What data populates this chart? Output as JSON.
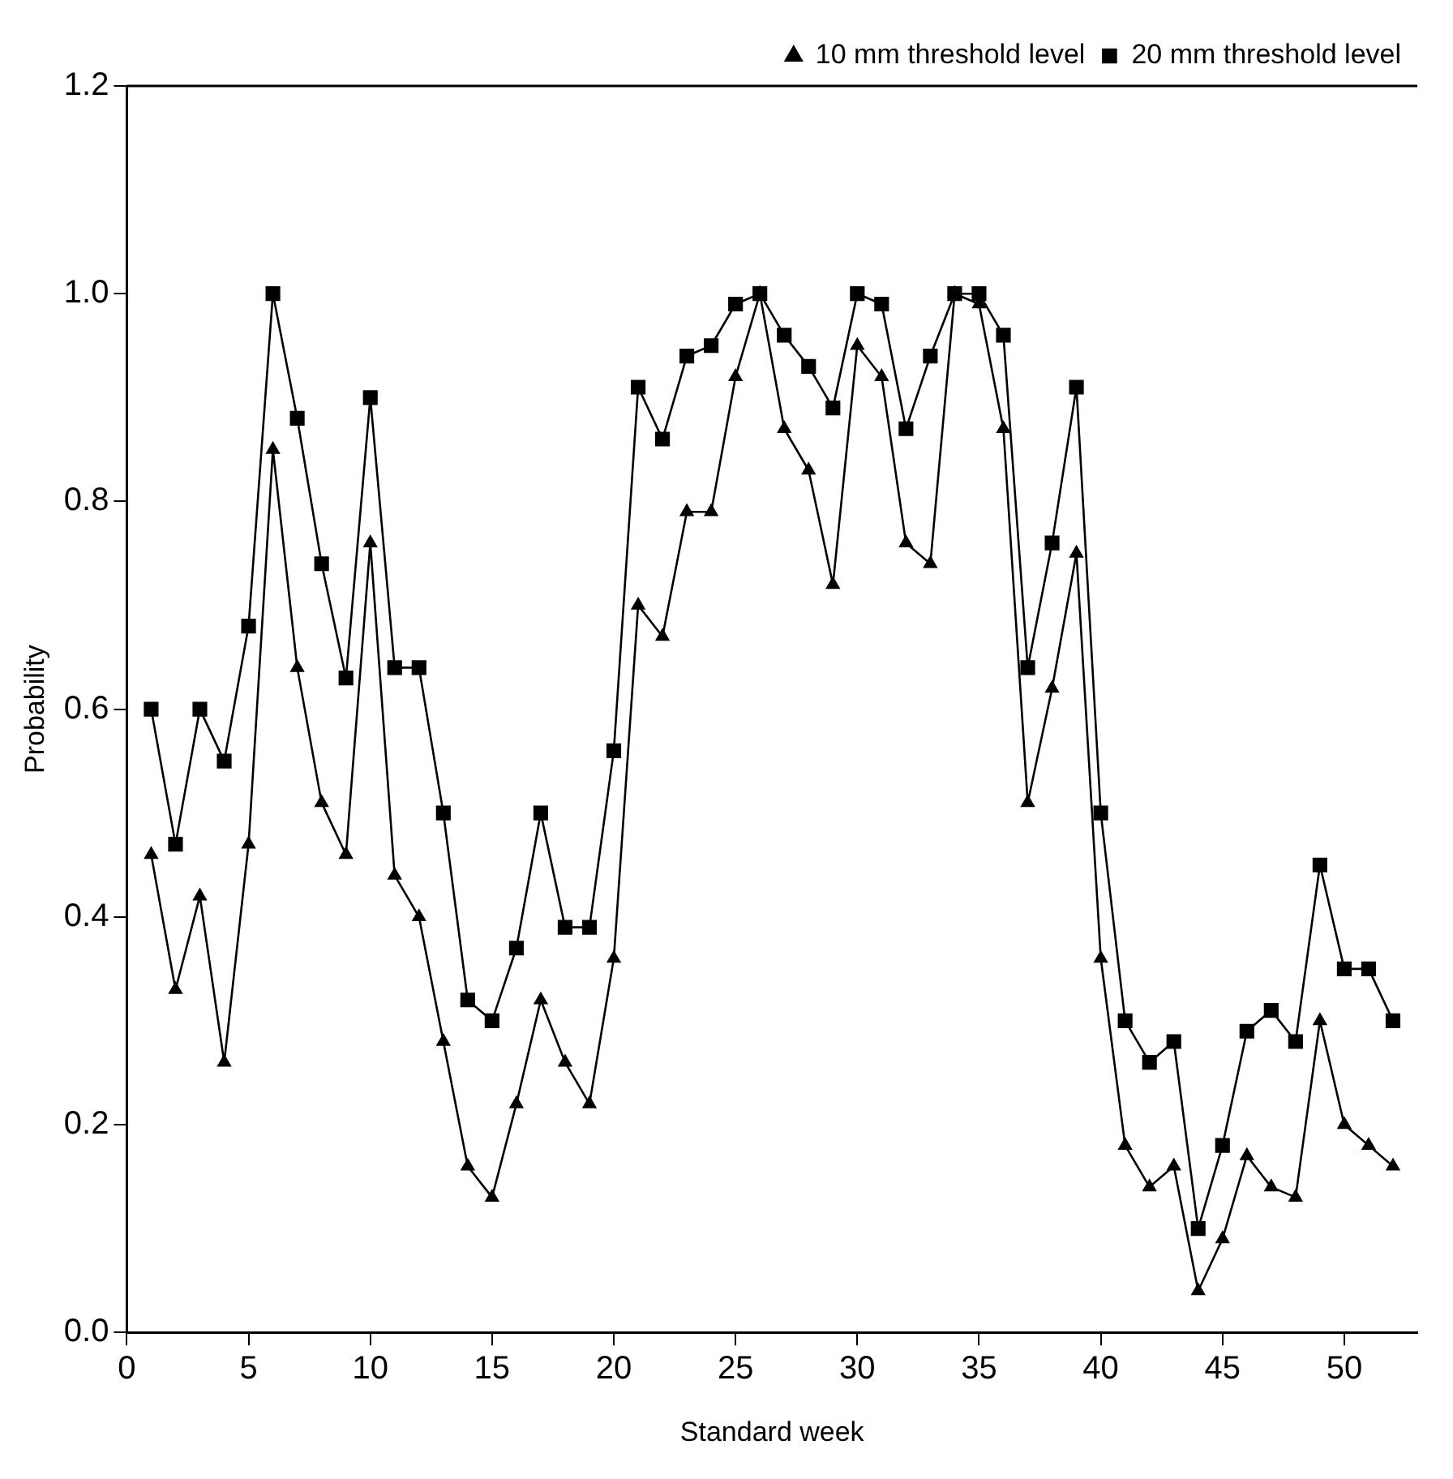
{
  "chart_data": {
    "type": "line",
    "xlabel": "Standard week",
    "ylabel": "Probability",
    "x": [
      1,
      2,
      3,
      4,
      5,
      6,
      7,
      8,
      9,
      10,
      11,
      12,
      13,
      14,
      15,
      16,
      17,
      18,
      19,
      20,
      21,
      22,
      23,
      24,
      25,
      26,
      27,
      28,
      29,
      30,
      31,
      32,
      33,
      34,
      35,
      36,
      37,
      38,
      39,
      40,
      41,
      42,
      43,
      44,
      45,
      46,
      47,
      48,
      49,
      50,
      51,
      52
    ],
    "series": [
      {
        "name": "20 mm threshold level",
        "color": "#000000",
        "marker": "square",
        "values": [
          0.6,
          0.47,
          0.6,
          0.55,
          0.68,
          1.0,
          0.88,
          0.74,
          0.63,
          0.9,
          0.64,
          0.64,
          0.5,
          0.32,
          0.3,
          0.37,
          0.5,
          0.39,
          0.39,
          0.56,
          0.91,
          0.86,
          0.94,
          0.95,
          0.99,
          1.0,
          0.96,
          0.93,
          0.89,
          1.0,
          0.99,
          0.87,
          0.94,
          1.0,
          1.0,
          0.96,
          0.64,
          0.76,
          0.91,
          0.5,
          0.3,
          0.26,
          0.28,
          0.1,
          0.18,
          0.29,
          0.31,
          0.28,
          0.45,
          0.35,
          0.35,
          0.3
        ]
      },
      {
        "name": "10 mm threshold level",
        "color": "#000000",
        "marker": "triangle",
        "values": [
          0.46,
          0.33,
          0.42,
          0.26,
          0.47,
          0.85,
          0.64,
          0.51,
          0.46,
          0.76,
          0.44,
          0.4,
          0.28,
          0.16,
          0.13,
          0.22,
          0.32,
          0.26,
          0.22,
          0.36,
          0.7,
          0.67,
          0.79,
          0.79,
          0.92,
          1.0,
          0.87,
          0.83,
          0.72,
          0.95,
          0.92,
          0.76,
          0.74,
          1.0,
          0.99,
          0.87,
          0.51,
          0.62,
          0.75,
          0.36,
          0.18,
          0.14,
          0.16,
          0.04,
          0.09,
          0.17,
          0.14,
          0.13,
          0.3,
          0.2,
          0.18,
          0.16
        ]
      }
    ],
    "xlim": [
      0,
      53
    ],
    "xticks": [
      0,
      5,
      10,
      15,
      20,
      25,
      30,
      35,
      40,
      45,
      50
    ],
    "ylim": [
      0,
      1.2
    ],
    "yticks": [
      {
        "value": 0,
        "label": "0.0"
      },
      {
        "value": 0.2,
        "label": "0.2"
      },
      {
        "value": 0.4,
        "label": "0.4"
      },
      {
        "value": 0.6,
        "label": "0.6"
      },
      {
        "value": 0.8,
        "label": "0.8"
      },
      {
        "value": 1,
        "label": "1.0"
      },
      {
        "value": 1.2,
        "label": "1.2"
      }
    ],
    "grid": false,
    "legend": "top right",
    "line_style": "solid"
  }
}
